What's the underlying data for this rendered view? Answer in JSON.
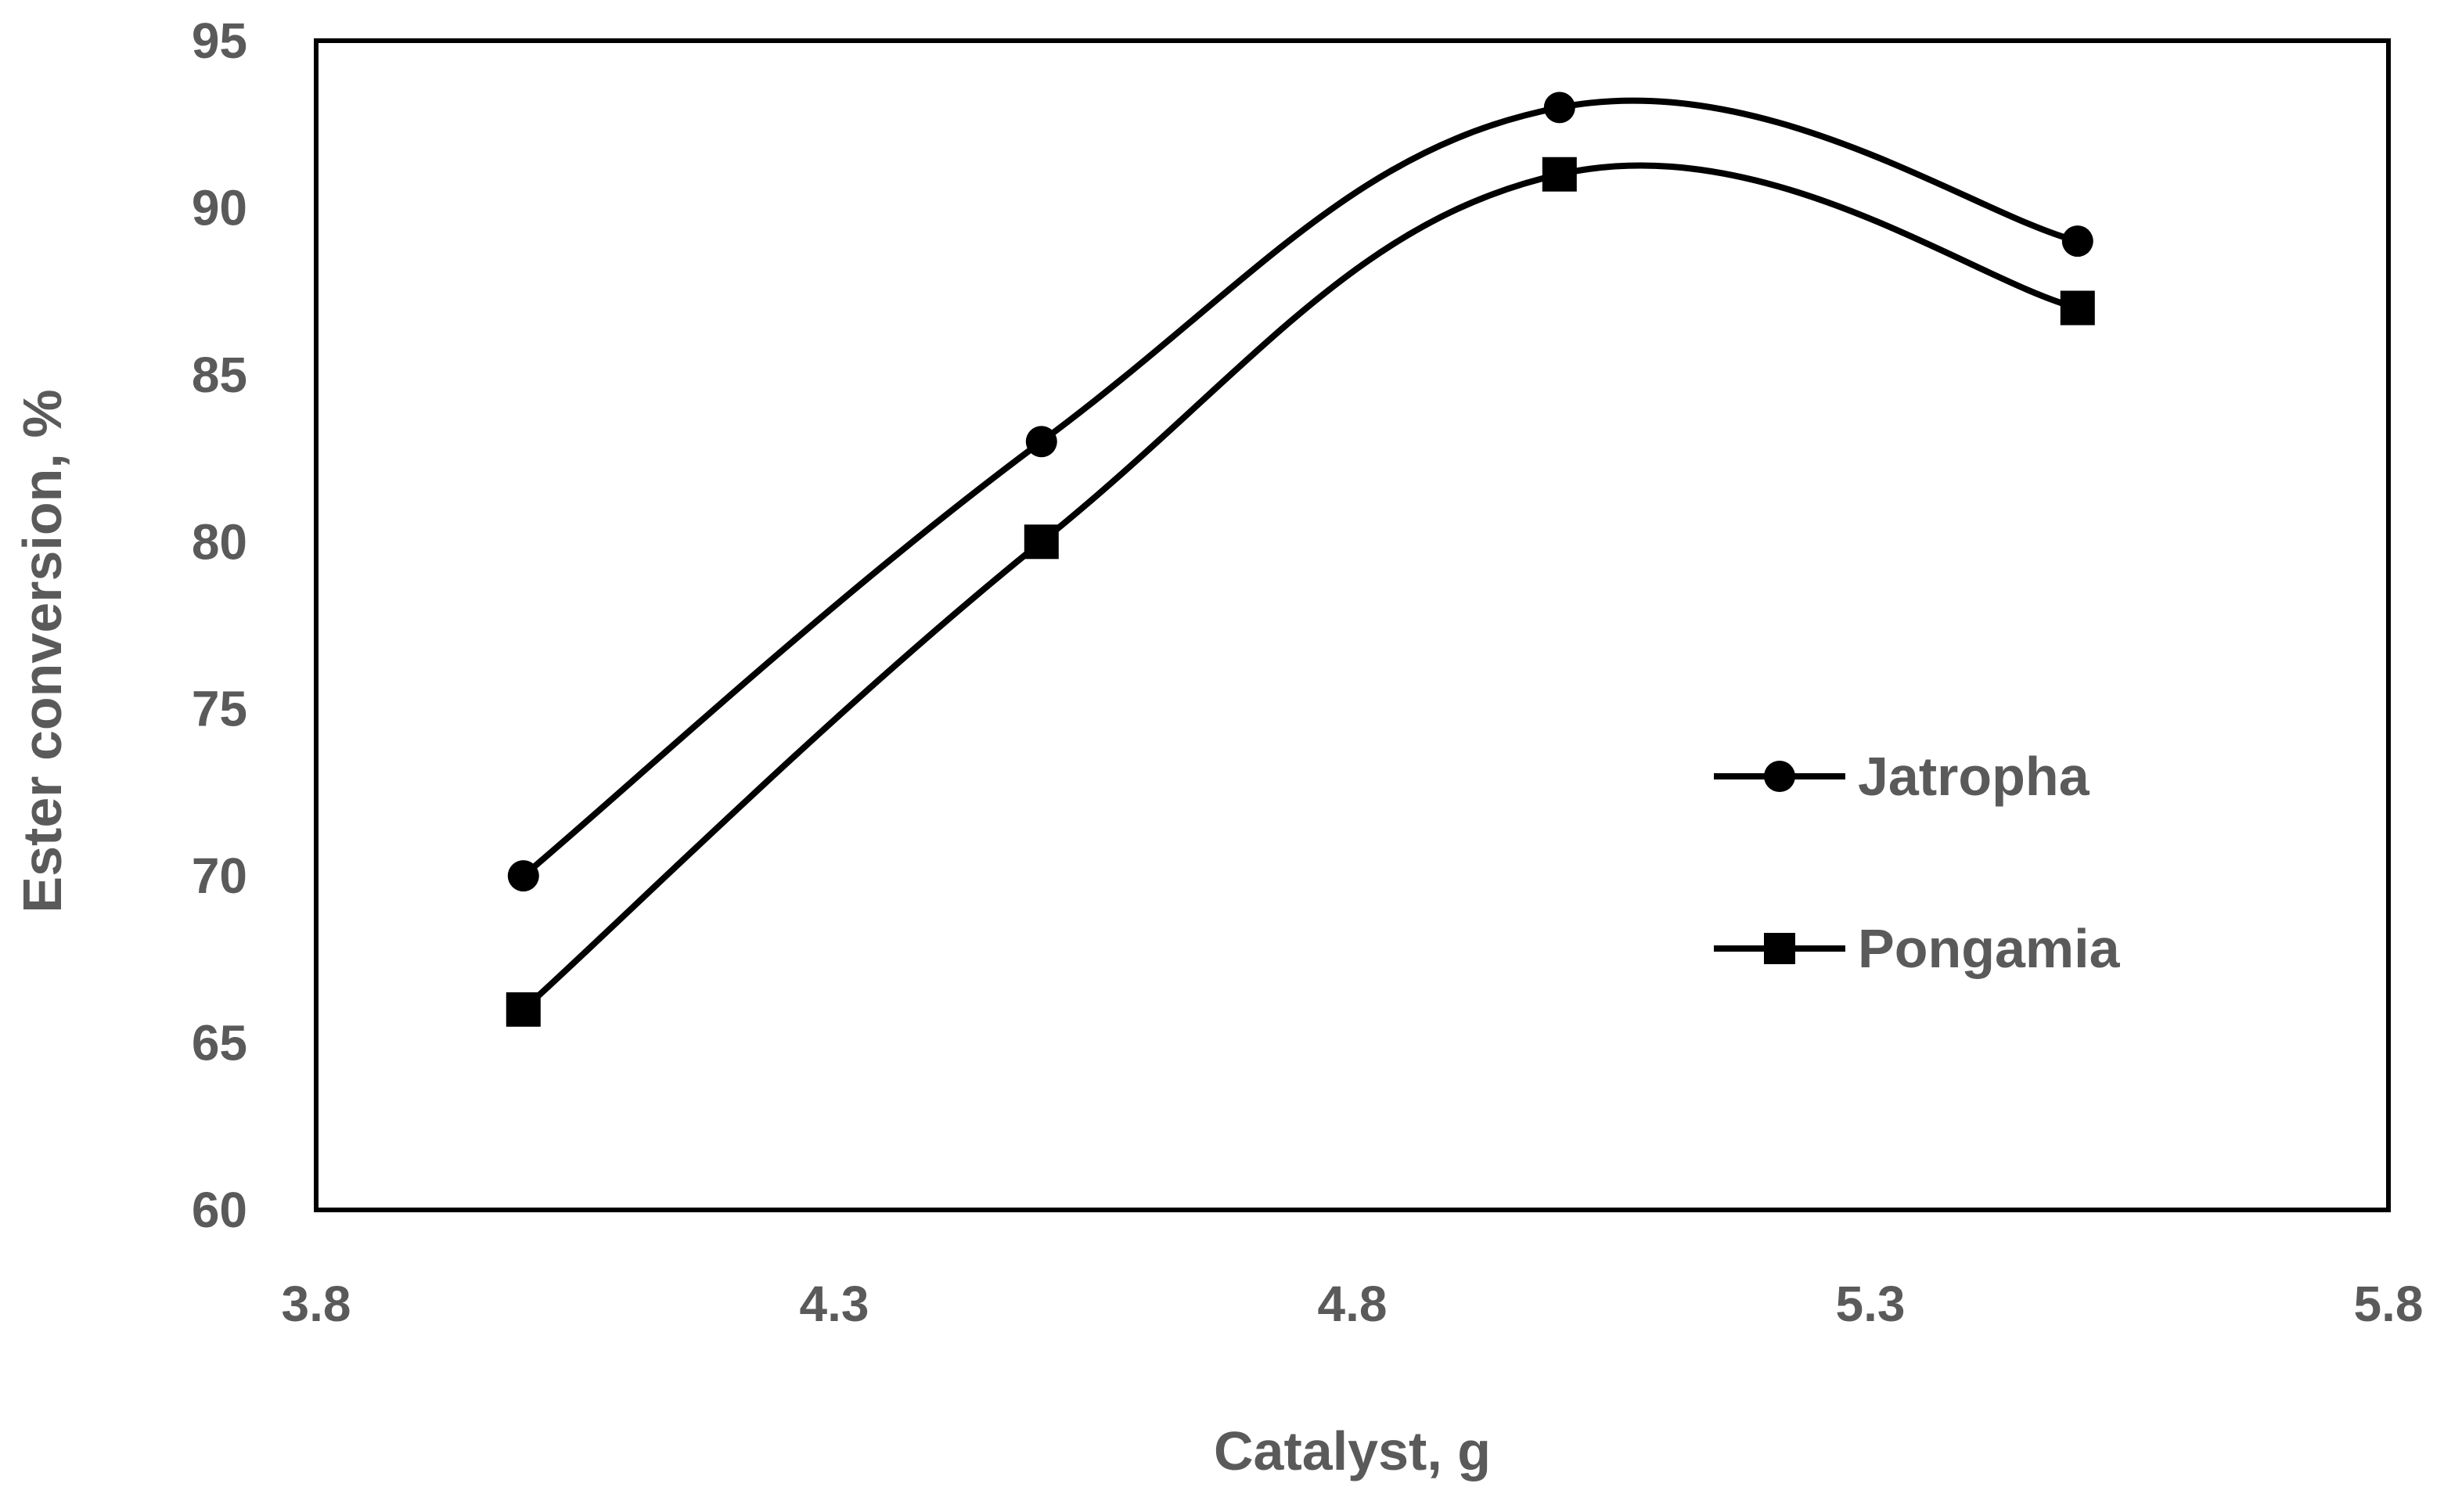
{
  "colors": {
    "line": "#000000",
    "text": "#5a5a5a",
    "background": "#ffffff"
  },
  "chart_data": {
    "type": "line",
    "title": "",
    "xlabel": "Catalyst, g",
    "ylabel": "Ester conversion, %",
    "xlim": [
      3.8,
      5.8
    ],
    "ylim": [
      60,
      95
    ],
    "xticks": [
      3.8,
      4.3,
      4.8,
      5.3,
      5.8
    ],
    "xtick_labels": [
      "3.8",
      "4.3",
      "4.8",
      "5.3",
      "5.8"
    ],
    "yticks": [
      60,
      65,
      70,
      75,
      80,
      85,
      90,
      95
    ],
    "ytick_labels": [
      "60",
      "65",
      "70",
      "75",
      "80",
      "85",
      "90",
      "95"
    ],
    "grid": false,
    "smooth": true,
    "legend": {
      "position": "right-middle"
    },
    "series": [
      {
        "name": "Jatropha",
        "marker": "circle",
        "x": [
          4.0,
          4.5,
          5.0,
          5.5
        ],
        "y": [
          70,
          83,
          93,
          89
        ]
      },
      {
        "name": "Pongamia",
        "marker": "square",
        "x": [
          4.0,
          4.5,
          5.0,
          5.5
        ],
        "y": [
          66,
          80,
          91,
          87
        ]
      }
    ]
  }
}
